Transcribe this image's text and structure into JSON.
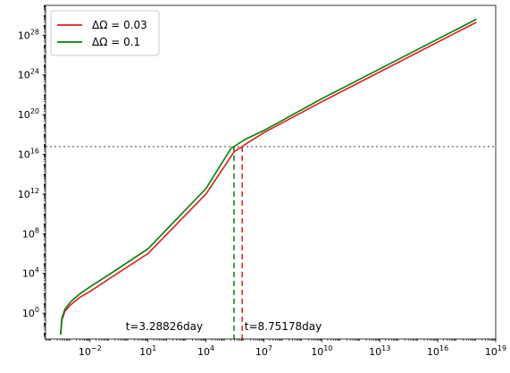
{
  "chart_data": {
    "type": "line",
    "title": "",
    "xlabel": "",
    "ylabel": "",
    "xscale": "log",
    "yscale": "log",
    "xlim": [
      5e-05,
      1e+19
    ],
    "ylim": [
      0.0025,
      1e+31
    ],
    "grid": false,
    "legend_position": "top-left",
    "x_ticks": [
      {
        "value": 0.01,
        "base": "10",
        "exp": "−2"
      },
      {
        "value": 10,
        "base": "10",
        "exp": "1"
      },
      {
        "value": 10000,
        "base": "10",
        "exp": "4"
      },
      {
        "value": 10000000,
        "base": "10",
        "exp": "7"
      },
      {
        "value": 10000000000.0,
        "base": "10",
        "exp": "10"
      },
      {
        "value": 10000000000000.0,
        "base": "10",
        "exp": "13"
      },
      {
        "value": 1e+16,
        "base": "10",
        "exp": "16"
      },
      {
        "value": 1e+19,
        "base": "10",
        "exp": "19"
      }
    ],
    "y_ticks": [
      {
        "value": 1,
        "base": "10",
        "exp": "0"
      },
      {
        "value": 10000,
        "base": "10",
        "exp": "4"
      },
      {
        "value": 100000000,
        "base": "10",
        "exp": "8"
      },
      {
        "value": 1000000000000.0,
        "base": "10",
        "exp": "12"
      },
      {
        "value": 1e+16,
        "base": "10",
        "exp": "16"
      },
      {
        "value": 1e+20,
        "base": "10",
        "exp": "20"
      },
      {
        "value": 1e+24,
        "base": "10",
        "exp": "24"
      },
      {
        "value": 1e+28,
        "base": "10",
        "exp": "28"
      }
    ],
    "series": [
      {
        "name": "ΔΩ = 0.03",
        "color": "#e41a1c",
        "x": [
          0.0003,
          0.00035,
          0.0005,
          0.001,
          0.003,
          0.01,
          0.1,
          10,
          10000,
          300000,
          756154,
          1500000,
          10000000,
          10000000000.0,
          100000000000000.0,
          1e+18
        ],
        "y": [
          0.007,
          0.2,
          1.5,
          7,
          40,
          150,
          3000,
          1000000,
          1000000000000.0,
          2e+16,
          6e+16,
          1.5e+17,
          1.5e+18,
          2e+21,
          2e+25,
          2e+29
        ]
      },
      {
        "name": "ΔΩ = 0.1",
        "color": "#008000",
        "x": [
          0.0003,
          0.00035,
          0.0005,
          0.001,
          0.003,
          0.01,
          0.1,
          10,
          10000,
          200000,
          283706,
          1000000,
          10000000,
          10000000000.0,
          100000000000000.0,
          1e+18
        ],
        "y": [
          0.007,
          0.3,
          2.5,
          14,
          90,
          450,
          8000,
          3000000,
          3500000000000.0,
          4e+16,
          6e+16,
          3e+17,
          2.5e+18,
          4e+21,
          4e+25,
          4e+29
        ]
      }
    ],
    "reference_lines": [
      {
        "orientation": "horizontal",
        "y": 6e+16,
        "color": "#808080",
        "style": "dotted"
      },
      {
        "orientation": "vertical",
        "x": 283706,
        "y_top": 6e+16,
        "color": "#008000",
        "style": "dashed"
      },
      {
        "orientation": "vertical",
        "x": 756154,
        "y_top": 6e+16,
        "color": "#e41a1c",
        "style": "dashed"
      }
    ],
    "annotations": [
      {
        "text": "t=3.28826day",
        "x": 0.7,
        "y": 0.02
      },
      {
        "text": "t=8.75178day",
        "x": 1000000,
        "y": 0.02
      }
    ]
  }
}
